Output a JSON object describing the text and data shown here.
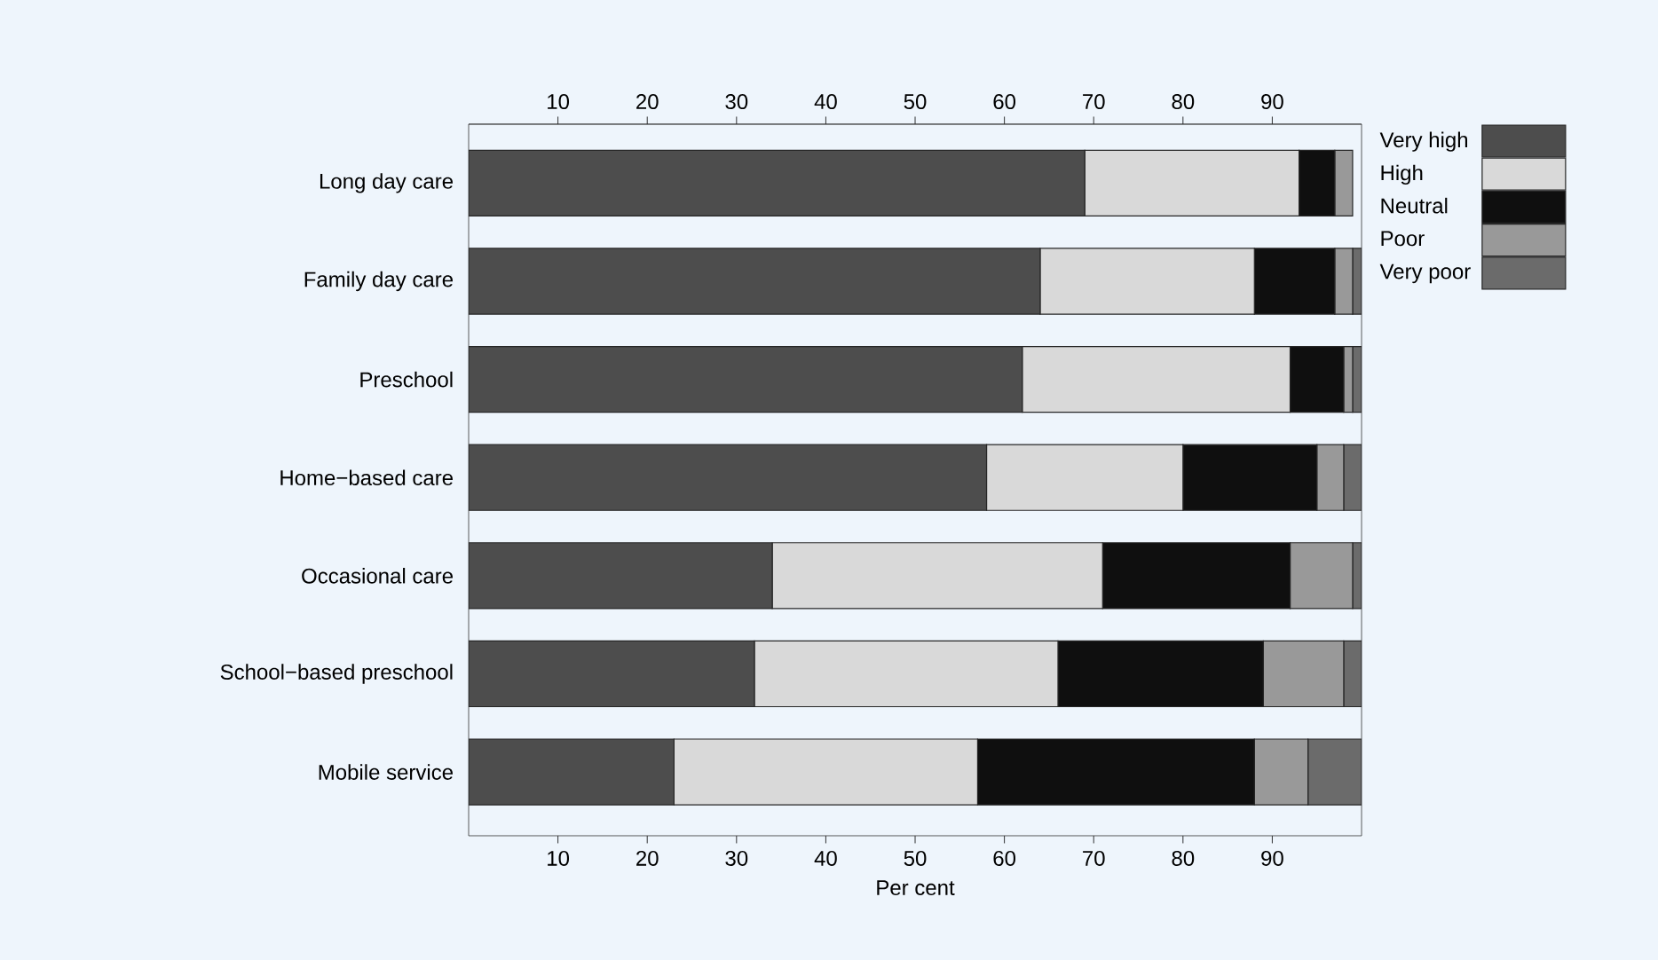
{
  "chart_data": {
    "type": "bar",
    "orientation": "horizontal",
    "stacked": true,
    "xlabel": "Per cent",
    "categories": [
      "Long day care",
      "Family day care",
      "Preschool",
      "Home−based care",
      "Occasional care",
      "School−based preschool",
      "Mobile service"
    ],
    "series": [
      {
        "name": "Very high",
        "color": "#4d4d4d",
        "values": [
          69,
          64,
          62,
          58,
          34,
          32,
          23
        ]
      },
      {
        "name": "High",
        "color": "#d9d9d9",
        "values": [
          24,
          24,
          30,
          22,
          37,
          34,
          34
        ]
      },
      {
        "name": "Neutral",
        "color": "#0f0f0f",
        "values": [
          4,
          9,
          6,
          15,
          21,
          23,
          31
        ]
      },
      {
        "name": "Poor",
        "color": "#999999",
        "values": [
          2,
          2,
          1,
          3,
          7,
          9,
          6
        ]
      },
      {
        "name": "Very poor",
        "color": "#6b6b6b",
        "values": [
          0,
          1,
          1,
          2,
          1,
          2,
          6
        ]
      }
    ],
    "xlim": [
      0,
      100
    ],
    "xticks": [
      10,
      20,
      30,
      40,
      50,
      60,
      70,
      80,
      90
    ],
    "x2lim": [
      0,
      100
    ],
    "x2ticks": [
      10,
      20,
      30,
      40,
      50,
      60,
      70,
      80,
      90
    ],
    "legend": "top right",
    "grid": false
  }
}
